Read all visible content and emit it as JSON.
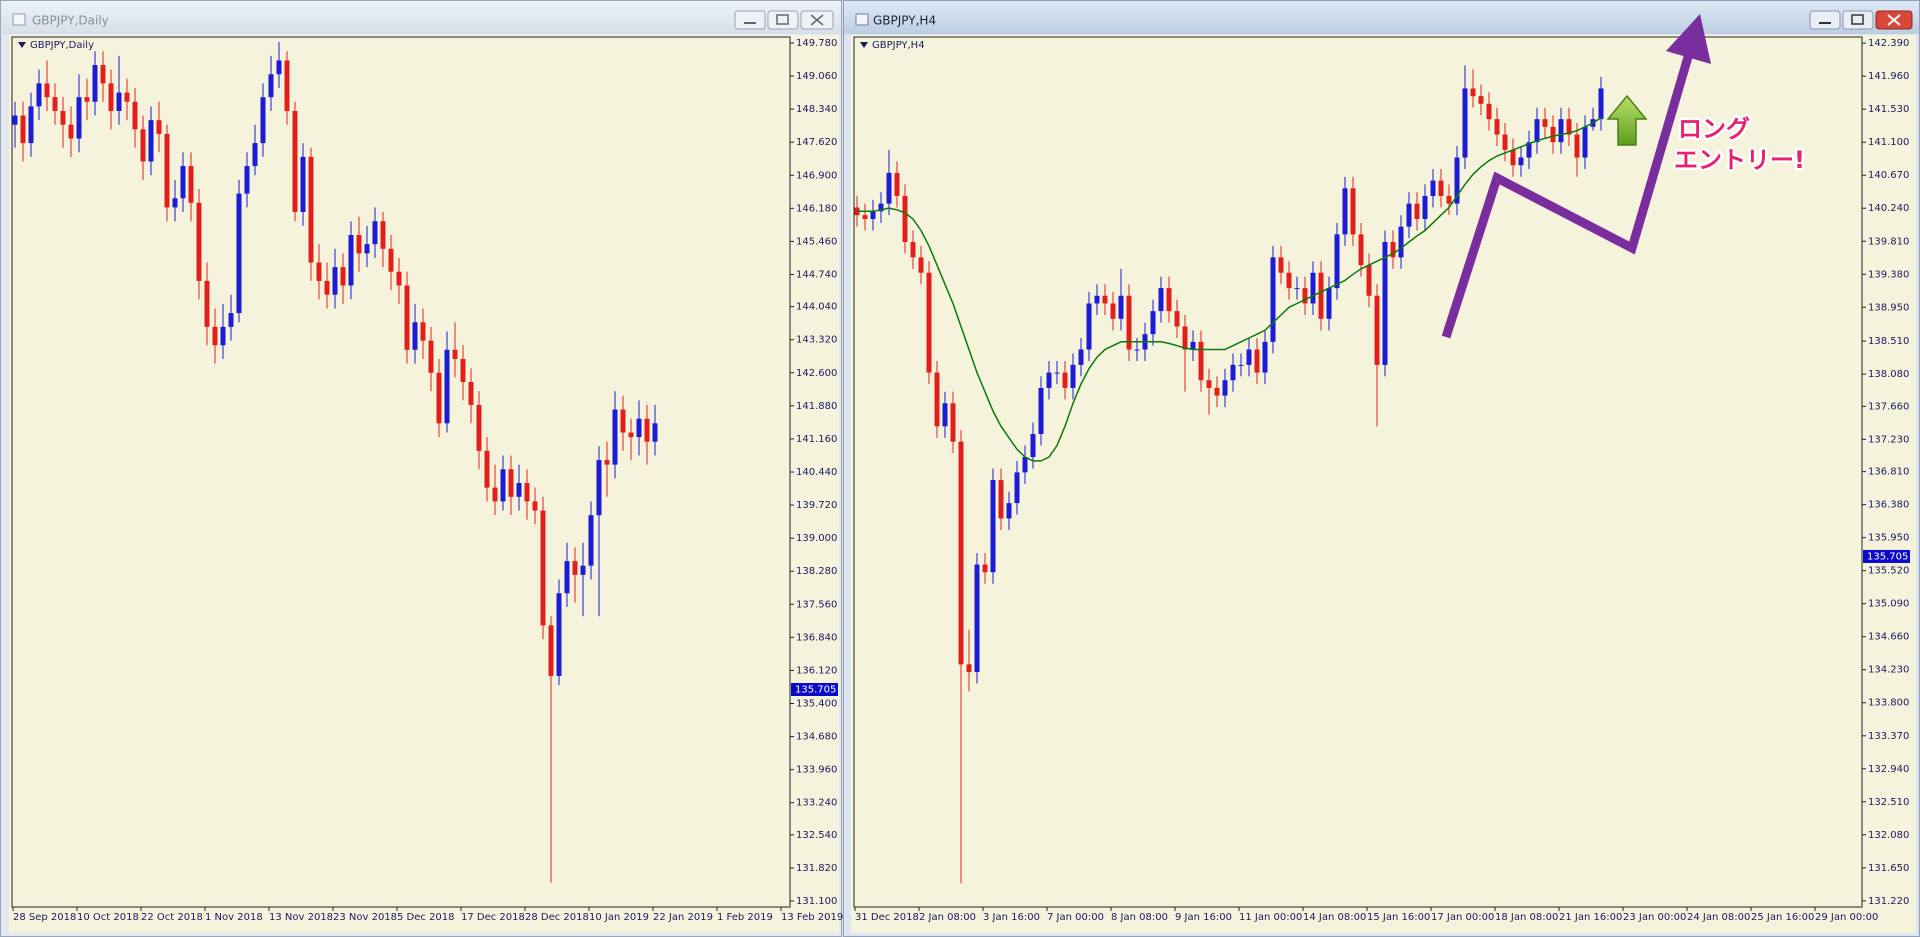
{
  "chart_data": [
    {
      "type": "candlestick",
      "window_title": "GBPJPY,Daily",
      "title": "GBPJPY,Daily",
      "x_labels": [
        "28 Sep 2018",
        "10 Oct 2018",
        "22 Oct 2018",
        "1 Nov 2018",
        "13 Nov 2018",
        "23 Nov 2018",
        "5 Dec 2018",
        "17 Dec 2018",
        "28 Dec 2018",
        "10 Jan 2019",
        "22 Jan 2019",
        "1 Feb 2019",
        "13 Feb 2019"
      ],
      "open": [
        148.0,
        148.2,
        147.6,
        148.4,
        148.9,
        148.6,
        148.3,
        148.0,
        147.7,
        148.6,
        148.5,
        149.3,
        148.9,
        148.3,
        148.7,
        148.5,
        147.9,
        147.2,
        148.1,
        147.8,
        146.2,
        146.4,
        147.1,
        146.3,
        144.6,
        143.6,
        143.2,
        143.6,
        143.9,
        146.5,
        147.1,
        147.6,
        148.6,
        149.1,
        149.4,
        148.3,
        146.1,
        147.3,
        145.0,
        144.6,
        144.3,
        144.9,
        144.5,
        145.6,
        145.2,
        145.4,
        145.9,
        145.3,
        144.8,
        144.5,
        143.1,
        143.7,
        143.3,
        142.6,
        141.5,
        143.1,
        142.9,
        142.4,
        141.9,
        140.9,
        140.1,
        139.8,
        140.5,
        139.9,
        140.2,
        139.8,
        139.6,
        137.1,
        136.0,
        137.8,
        138.5,
        138.2,
        138.4,
        139.5,
        140.7,
        140.6,
        141.8,
        141.3,
        141.2,
        141.6,
        141.1
      ],
      "high": [
        148.5,
        148.5,
        148.7,
        149.2,
        149.4,
        148.9,
        148.6,
        148.4,
        149.1,
        149.0,
        149.6,
        149.6,
        149.2,
        149.5,
        149.0,
        148.8,
        148.2,
        148.4,
        148.5,
        148.0,
        146.8,
        147.4,
        147.4,
        146.6,
        145.0,
        144.0,
        144.1,
        144.3,
        146.8,
        147.4,
        148.0,
        148.9,
        149.5,
        149.8,
        149.6,
        148.5,
        147.6,
        147.5,
        145.4,
        145.0,
        145.3,
        145.2,
        145.9,
        146.0,
        145.8,
        146.2,
        146.1,
        145.6,
        145.1,
        144.8,
        144.1,
        144.0,
        143.6,
        142.9,
        143.5,
        143.7,
        143.2,
        142.7,
        142.2,
        141.2,
        140.6,
        140.8,
        140.8,
        140.6,
        140.5,
        140.1,
        139.9,
        137.3,
        138.1,
        138.9,
        138.8,
        138.9,
        139.8,
        141.0,
        141.1,
        142.2,
        142.1,
        141.6,
        142.0,
        141.9,
        141.9
      ],
      "low": [
        147.5,
        147.2,
        147.3,
        148.1,
        148.3,
        148.0,
        147.5,
        147.3,
        147.4,
        148.1,
        148.2,
        148.5,
        147.9,
        148.0,
        148.1,
        147.5,
        146.8,
        146.9,
        147.4,
        145.9,
        145.9,
        146.1,
        145.9,
        144.2,
        143.2,
        142.8,
        142.9,
        143.3,
        143.7,
        146.2,
        146.9,
        147.3,
        148.3,
        148.8,
        148.0,
        145.9,
        145.8,
        144.6,
        144.2,
        144.0,
        144.0,
        144.1,
        144.2,
        144.8,
        144.9,
        145.1,
        144.9,
        144.4,
        144.1,
        142.8,
        142.8,
        142.9,
        142.2,
        141.2,
        141.3,
        142.5,
        142.0,
        141.5,
        140.5,
        139.8,
        139.5,
        139.6,
        139.5,
        139.6,
        139.4,
        139.3,
        136.8,
        131.5,
        135.8,
        137.5,
        137.6,
        137.3,
        138.1,
        137.3,
        139.9,
        140.3,
        140.9,
        140.7,
        140.8,
        140.6,
        140.8
      ],
      "close": [
        148.2,
        147.6,
        148.4,
        148.9,
        148.6,
        148.3,
        148.0,
        147.7,
        148.6,
        148.5,
        149.3,
        148.9,
        148.3,
        148.7,
        148.5,
        147.9,
        147.2,
        148.1,
        147.8,
        146.2,
        146.4,
        147.1,
        146.3,
        144.6,
        143.6,
        143.2,
        143.6,
        143.9,
        146.5,
        147.1,
        147.6,
        148.6,
        149.1,
        149.4,
        148.3,
        146.1,
        147.3,
        145.0,
        144.6,
        144.3,
        144.9,
        144.5,
        145.6,
        145.2,
        145.4,
        145.9,
        145.3,
        144.8,
        144.5,
        143.1,
        143.7,
        143.3,
        142.6,
        141.5,
        143.1,
        142.9,
        142.4,
        141.9,
        140.9,
        140.1,
        139.8,
        140.5,
        139.9,
        140.2,
        139.8,
        139.6,
        137.1,
        136.0,
        137.8,
        138.5,
        138.2,
        138.4,
        139.5,
        140.7,
        140.6,
        141.8,
        141.3,
        141.2,
        141.6,
        141.1,
        141.5
      ],
      "up_color": "#1c1cd6",
      "down_color": "#e2201b",
      "background": "#f5f3dc",
      "ylim": [
        130.97,
        149.91
      ],
      "yticks": [
        {
          "value": 149.78,
          "label": "149.780"
        },
        {
          "value": 149.06,
          "label": "149.060"
        },
        {
          "value": 148.34,
          "label": "148.340"
        },
        {
          "value": 147.62,
          "label": "147.620"
        },
        {
          "value": 146.9,
          "label": "146.900"
        },
        {
          "value": 146.18,
          "label": "146.180"
        },
        {
          "value": 145.46,
          "label": "145.460"
        },
        {
          "value": 144.74,
          "label": "144.740"
        },
        {
          "value": 144.04,
          "label": "144.040"
        },
        {
          "value": 143.32,
          "label": "143.320"
        },
        {
          "value": 142.6,
          "label": "142.600"
        },
        {
          "value": 141.88,
          "label": "141.880"
        },
        {
          "value": 141.16,
          "label": "141.160"
        },
        {
          "value": 140.44,
          "label": "140.440"
        },
        {
          "value": 139.72,
          "label": "139.720"
        },
        {
          "value": 139,
          "label": "139.000"
        },
        {
          "value": 138.28,
          "label": "138.280"
        },
        {
          "value": 137.56,
          "label": "137.560"
        },
        {
          "value": 136.84,
          "label": "136.840"
        },
        {
          "value": 136.12,
          "label": "136.120"
        },
        {
          "value": 135.4,
          "label": "135.400"
        },
        {
          "value": 134.68,
          "label": "134.680"
        },
        {
          "value": 133.96,
          "label": "133.960"
        },
        {
          "value": 133.24,
          "label": "133.240"
        },
        {
          "value": 132.54,
          "label": "132.540"
        },
        {
          "value": 131.82,
          "label": "131.820"
        },
        {
          "value": 131.1,
          "label": "131.100"
        }
      ],
      "price_label": {
        "value": 135.705,
        "label": "135.705",
        "color": "#0a0ac8"
      }
    },
    {
      "type": "candlestick",
      "window_title": "GBPJPY,H4",
      "title": "GBPJPY,H4",
      "x_labels": [
        "31 Dec 2018",
        "2 Jan 08:00",
        "3 Jan 16:00",
        "7 Jan 00:00",
        "8 Jan 08:00",
        "9 Jan 16:00",
        "11 Jan 00:00",
        "14 Jan 08:00",
        "15 Jan 16:00",
        "17 Jan 00:00",
        "18 Jan 08:00",
        "21 Jan 16:00",
        "23 Jan 00:00",
        "24 Jan 08:00",
        "25 Jan 16:00",
        "29 Jan 00:00"
      ],
      "open": [
        140.25,
        140.15,
        140.1,
        140.2,
        140.3,
        140.7,
        140.4,
        139.8,
        139.6,
        139.4,
        138.1,
        137.4,
        137.7,
        137.2,
        134.3,
        134.2,
        135.6,
        135.5,
        136.7,
        136.2,
        136.4,
        136.8,
        137.0,
        137.3,
        137.9,
        138.1,
        138.1,
        137.9,
        138.2,
        138.4,
        139.0,
        139.1,
        139.0,
        138.8,
        139.1,
        138.4,
        138.4,
        138.6,
        138.9,
        139.2,
        138.9,
        138.7,
        138.4,
        138.5,
        138.0,
        137.9,
        137.8,
        138.0,
        138.2,
        138.2,
        138.4,
        138.1,
        138.5,
        139.6,
        139.4,
        139.2,
        139.2,
        139.0,
        139.4,
        138.8,
        139.2,
        139.9,
        140.5,
        139.9,
        139.5,
        139.1,
        138.2,
        139.8,
        139.6,
        140.0,
        140.3,
        140.1,
        140.4,
        140.6,
        140.4,
        140.3,
        140.9,
        141.8,
        141.7,
        141.6,
        141.4,
        141.2,
        141.0,
        140.8,
        140.9,
        141.1,
        141.4,
        141.3,
        141.1,
        141.4,
        141.2,
        140.9,
        141.3,
        141.4
      ],
      "high": [
        140.4,
        140.3,
        140.35,
        140.45,
        141.0,
        140.85,
        140.55,
        139.95,
        139.75,
        139.55,
        138.25,
        137.85,
        137.85,
        137.35,
        134.75,
        135.75,
        135.75,
        136.85,
        136.85,
        136.55,
        136.95,
        137.15,
        137.45,
        138.05,
        138.25,
        138.25,
        138.25,
        138.35,
        138.55,
        139.15,
        139.25,
        139.25,
        139.15,
        139.45,
        139.25,
        138.55,
        138.75,
        139.05,
        139.35,
        139.35,
        139.05,
        138.85,
        138.65,
        138.65,
        138.15,
        138.05,
        138.15,
        138.35,
        138.35,
        138.55,
        138.55,
        138.65,
        139.75,
        139.75,
        139.55,
        139.35,
        139.35,
        139.55,
        139.55,
        139.35,
        140.05,
        140.65,
        140.65,
        140.05,
        139.65,
        139.25,
        139.95,
        139.95,
        140.15,
        140.45,
        140.45,
        140.55,
        140.75,
        140.75,
        140.55,
        141.05,
        142.1,
        142.05,
        141.85,
        141.75,
        141.55,
        141.35,
        141.15,
        141.05,
        141.25,
        141.55,
        141.55,
        141.45,
        141.55,
        141.55,
        141.35,
        141.45,
        141.55,
        141.95
      ],
      "low": [
        140.0,
        139.95,
        139.95,
        140.05,
        140.15,
        140.25,
        139.65,
        139.45,
        139.25,
        137.95,
        137.25,
        137.25,
        137.05,
        131.45,
        133.95,
        134.05,
        135.35,
        135.35,
        136.05,
        136.05,
        136.25,
        136.65,
        136.85,
        137.15,
        137.75,
        137.95,
        137.75,
        137.75,
        138.05,
        138.25,
        138.85,
        138.85,
        138.65,
        138.65,
        138.25,
        138.25,
        138.25,
        138.45,
        138.75,
        138.75,
        138.55,
        137.85,
        138.25,
        137.85,
        137.55,
        137.65,
        137.65,
        137.85,
        138.05,
        138.05,
        137.95,
        137.95,
        138.35,
        139.25,
        139.05,
        139.05,
        138.85,
        138.85,
        138.65,
        138.65,
        139.05,
        139.75,
        139.75,
        139.35,
        138.95,
        137.4,
        138.05,
        139.45,
        139.45,
        139.85,
        139.95,
        139.95,
        140.25,
        140.25,
        140.15,
        140.15,
        140.75,
        141.55,
        141.45,
        141.25,
        141.05,
        140.85,
        140.65,
        140.65,
        140.75,
        140.95,
        141.15,
        140.95,
        140.95,
        141.05,
        140.65,
        140.75,
        141.25,
        141.25
      ],
      "close": [
        140.15,
        140.1,
        140.2,
        140.3,
        140.7,
        140.4,
        139.8,
        139.6,
        139.4,
        138.1,
        137.4,
        137.7,
        137.2,
        134.3,
        134.2,
        135.6,
        135.5,
        136.7,
        136.2,
        136.4,
        136.8,
        137.0,
        137.3,
        137.9,
        138.1,
        138.1,
        137.9,
        138.2,
        138.4,
        139.0,
        139.1,
        139.0,
        138.8,
        139.1,
        138.4,
        138.4,
        138.6,
        138.9,
        139.2,
        138.9,
        138.7,
        138.4,
        138.5,
        138.0,
        137.9,
        137.8,
        138.0,
        138.2,
        138.2,
        138.4,
        138.1,
        138.5,
        139.6,
        139.4,
        139.2,
        139.2,
        139.0,
        139.4,
        138.8,
        139.2,
        139.9,
        140.5,
        139.9,
        139.5,
        139.1,
        138.2,
        139.8,
        139.6,
        140.0,
        140.3,
        140.1,
        140.4,
        140.6,
        140.4,
        140.3,
        140.9,
        141.8,
        141.7,
        141.6,
        141.4,
        141.2,
        141.0,
        140.8,
        140.9,
        141.1,
        141.4,
        141.3,
        141.1,
        141.4,
        141.2,
        140.9,
        141.3,
        141.4,
        141.8
      ],
      "ma": {
        "color": "#0b7a0b",
        "values": [
          140.2,
          140.2,
          140.2,
          140.22,
          140.24,
          140.22,
          140.18,
          140.1,
          139.95,
          139.75,
          139.5,
          139.25,
          139.0,
          138.7,
          138.4,
          138.1,
          137.85,
          137.6,
          137.4,
          137.25,
          137.1,
          137.0,
          136.95,
          136.95,
          137.0,
          137.15,
          137.4,
          137.7,
          137.95,
          138.15,
          138.3,
          138.4,
          138.45,
          138.5,
          138.5,
          138.5,
          138.5,
          138.5,
          138.5,
          138.48,
          138.45,
          138.42,
          138.4,
          138.4,
          138.4,
          138.4,
          138.4,
          138.45,
          138.5,
          138.55,
          138.6,
          138.65,
          138.75,
          138.85,
          138.95,
          139.0,
          139.05,
          139.1,
          139.15,
          139.2,
          139.25,
          139.3,
          139.38,
          139.45,
          139.5,
          139.55,
          139.6,
          139.65,
          139.72,
          139.8,
          139.88,
          139.95,
          140.05,
          140.15,
          140.25,
          140.4,
          140.55,
          140.68,
          140.78,
          140.86,
          140.92,
          140.96,
          141.0,
          141.04,
          141.08,
          141.12,
          141.15,
          141.18,
          141.2,
          141.22,
          141.25,
          141.3,
          141.35,
          141.42
        ]
      },
      "up_color": "#1c1cd6",
      "down_color": "#e2201b",
      "background": "#f5f3dc",
      "ylim": [
        131.14,
        142.47
      ],
      "yticks": [
        {
          "value": 142.39,
          "label": "142.390"
        },
        {
          "value": 141.96,
          "label": "141.960"
        },
        {
          "value": 141.53,
          "label": "141.530"
        },
        {
          "value": 141.1,
          "label": "141.100"
        },
        {
          "value": 140.67,
          "label": "140.670"
        },
        {
          "value": 140.24,
          "label": "140.240"
        },
        {
          "value": 139.81,
          "label": "139.810"
        },
        {
          "value": 139.38,
          "label": "139.380"
        },
        {
          "value": 138.95,
          "label": "138.950"
        },
        {
          "value": 138.51,
          "label": "138.510"
        },
        {
          "value": 138.08,
          "label": "138.080"
        },
        {
          "value": 137.66,
          "label": "137.660"
        },
        {
          "value": 137.23,
          "label": "137.230"
        },
        {
          "value": 136.81,
          "label": "136.810"
        },
        {
          "value": 136.38,
          "label": "136.380"
        },
        {
          "value": 135.95,
          "label": "135.950"
        },
        {
          "value": 135.52,
          "label": "135.520"
        },
        {
          "value": 135.09,
          "label": "135.090"
        },
        {
          "value": 134.66,
          "label": "134.660"
        },
        {
          "value": 134.23,
          "label": "134.230"
        },
        {
          "value": 133.8,
          "label": "133.800"
        },
        {
          "value": 133.37,
          "label": "133.370"
        },
        {
          "value": 132.94,
          "label": "132.940"
        },
        {
          "value": 132.51,
          "label": "132.510"
        },
        {
          "value": 132.08,
          "label": "132.080"
        },
        {
          "value": 131.65,
          "label": "131.650"
        },
        {
          "value": 131.22,
          "label": "131.220"
        }
      ],
      "price_label": {
        "value": 135.705,
        "label": "135.705",
        "color": "#0a0ac8"
      }
    }
  ],
  "annotation": {
    "lines": [
      "ロング",
      "エントリー!"
    ]
  }
}
